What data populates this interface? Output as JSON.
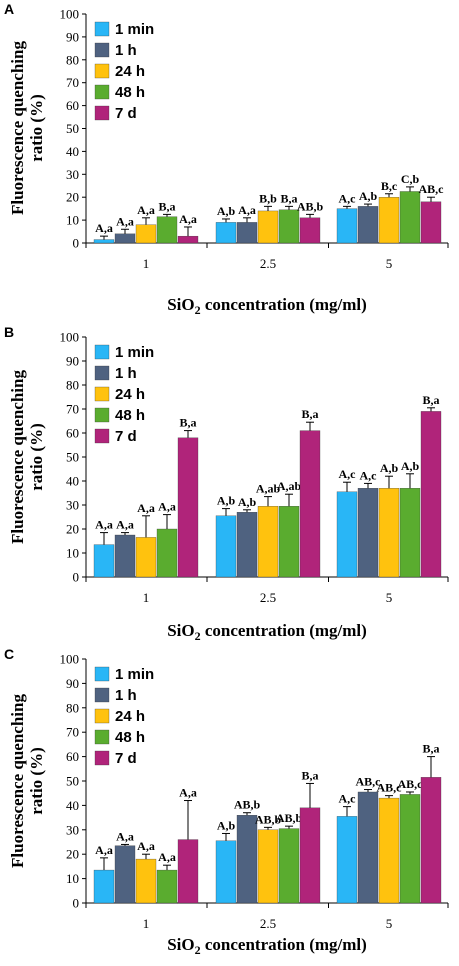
{
  "figure_title": "",
  "colors": {
    "1 min": "#29b6f6",
    "1 h": "#4f6280",
    "24 h": "#ffc20e",
    "48 h": "#5aac2f",
    "7 d": "#b0247a"
  },
  "chart_data": [
    {
      "panel": "A",
      "type": "bar",
      "xlabel": "SiO2 concentration (mg/ml)",
      "ylabel": "Fluorescence quenching ratio (%)",
      "ylim": [
        0,
        100
      ],
      "yticks": [
        0,
        10,
        20,
        30,
        40,
        50,
        60,
        70,
        80,
        90,
        100
      ],
      "categories": [
        "1",
        "2.5",
        "5"
      ],
      "legend_position": "top-left",
      "series": [
        {
          "name": "1 min",
          "values": [
            1.5,
            9,
            15
          ],
          "errors": [
            1.5,
            1.5,
            1
          ],
          "labels": [
            "A,a",
            "A,b",
            "A,c"
          ]
        },
        {
          "name": "1 h",
          "values": [
            4,
            9,
            16
          ],
          "errors": [
            2,
            2,
            1
          ],
          "labels": [
            "A,a",
            "A,a",
            "A,b"
          ]
        },
        {
          "name": "24 h",
          "values": [
            8,
            14,
            20
          ],
          "errors": [
            3,
            2,
            1.5
          ],
          "labels": [
            "A,a",
            "B,b",
            "B,c"
          ]
        },
        {
          "name": "48 h",
          "values": [
            11.5,
            14.5,
            22.5
          ],
          "errors": [
            1,
            1.5,
            2
          ],
          "labels": [
            "B,a",
            "B,a",
            "C,b"
          ]
        },
        {
          "name": "7 d",
          "values": [
            3,
            11,
            18
          ],
          "errors": [
            4,
            1.5,
            2
          ],
          "labels": [
            "A,a",
            "AB,b",
            "AB,c"
          ]
        }
      ]
    },
    {
      "panel": "B",
      "type": "bar",
      "xlabel": "SiO2 concentration (mg/ml)",
      "ylabel": "Fluorescence quenching ratio (%)",
      "ylim": [
        0,
        100
      ],
      "yticks": [
        0,
        10,
        20,
        30,
        40,
        50,
        60,
        70,
        80,
        90,
        100
      ],
      "categories": [
        "1",
        "2.5",
        "5"
      ],
      "legend_position": "top-left",
      "series": [
        {
          "name": "1 min",
          "values": [
            13.5,
            25.5,
            35.5
          ],
          "errors": [
            5,
            3,
            4
          ],
          "labels": [
            "A,a",
            "A,b",
            "A,c"
          ]
        },
        {
          "name": "1 h",
          "values": [
            17.5,
            27,
            37
          ],
          "errors": [
            1,
            1,
            2
          ],
          "labels": [
            "A,a",
            "A,b",
            "A,c"
          ]
        },
        {
          "name": "24 h",
          "values": [
            16.5,
            29.5,
            37
          ],
          "errors": [
            9,
            4,
            5
          ],
          "labels": [
            "A,a",
            "A,ab",
            "A,b"
          ]
        },
        {
          "name": "48 h",
          "values": [
            20,
            29.5,
            37
          ],
          "errors": [
            6,
            5,
            6
          ],
          "labels": [
            "A,a",
            "A,ab",
            "A,b"
          ]
        },
        {
          "name": "7 d",
          "values": [
            58,
            61,
            69
          ],
          "errors": [
            3,
            3.5,
            1.5
          ],
          "labels": [
            "B,a",
            "B,a",
            "B,a"
          ]
        }
      ]
    },
    {
      "panel": "C",
      "type": "bar",
      "xlabel": "SiO2 concentration (mg/ml)",
      "ylabel": "Fluorescence quenching ratio (%)",
      "ylim": [
        0,
        100
      ],
      "yticks": [
        0,
        10,
        20,
        30,
        40,
        50,
        60,
        70,
        80,
        90,
        100
      ],
      "categories": [
        "1",
        "2.5",
        "5"
      ],
      "legend_position": "top-left",
      "series": [
        {
          "name": "1 min",
          "values": [
            13.5,
            25.5,
            35.5
          ],
          "errors": [
            5,
            3,
            4
          ],
          "labels": [
            "A,a",
            "A,b",
            "A,c"
          ]
        },
        {
          "name": "1 h",
          "values": [
            23.5,
            36,
            45.5
          ],
          "errors": [
            0.5,
            1,
            1
          ],
          "labels": [
            "A,a",
            "AB,b",
            "AB,c"
          ]
        },
        {
          "name": "24 h",
          "values": [
            18,
            30,
            43
          ],
          "errors": [
            2,
            1,
            1
          ],
          "labels": [
            "A,a",
            "AB,b",
            "AB,c"
          ]
        },
        {
          "name": "48 h",
          "values": [
            13.5,
            30.5,
            44.5
          ],
          "errors": [
            2,
            1,
            1
          ],
          "labels": [
            "A,a",
            "AB,b",
            "AB,c"
          ]
        },
        {
          "name": "7 d",
          "values": [
            26,
            39,
            51.5
          ],
          "errors": [
            16,
            10,
            8.5
          ],
          "labels": [
            "A,a",
            "B,a",
            "B,a"
          ]
        }
      ]
    }
  ]
}
